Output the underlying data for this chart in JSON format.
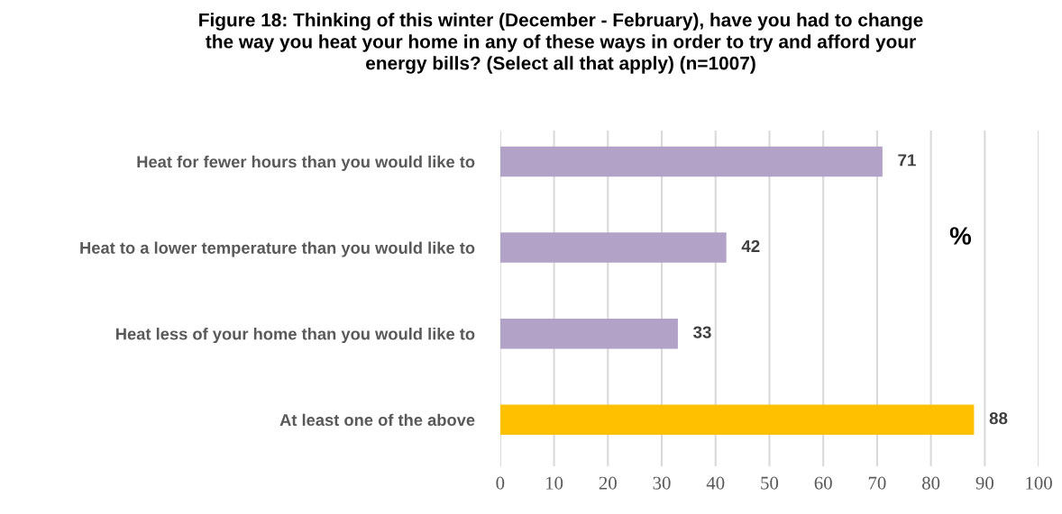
{
  "chart_data": {
    "type": "bar",
    "orientation": "horizontal",
    "title": "Figure 18: Thinking of this winter (December - February), have you had to change\nthe way you heat your home in any of these ways in order to try and afford your\nenergy bills? (Select all that apply) (n=1007)",
    "categories": [
      "Heat for fewer hours than you would like to",
      "Heat to a lower temperature than you would like to",
      "Heat less of your home than you would like to",
      "At least one of the above"
    ],
    "values": [
      71,
      42,
      33,
      88
    ],
    "colors": [
      "#b3a2c7",
      "#b3a2c7",
      "#b3a2c7",
      "#ffc000"
    ],
    "xlim": [
      0,
      100
    ],
    "xticks": [
      0,
      10,
      20,
      30,
      40,
      50,
      60,
      70,
      80,
      90,
      100
    ],
    "grid": "x",
    "data_labels": true,
    "annotations": [
      "%"
    ]
  }
}
